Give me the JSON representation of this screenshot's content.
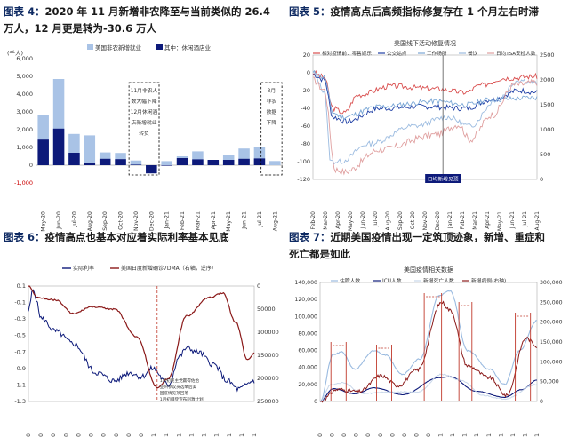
{
  "panels": [
    {
      "figure_label": "图表 4：",
      "title": "2020 年 11 月新增非农降至与当前类似的 26.4 万人，12 月更是转为-30.6 万人",
      "title_line1": "2020 年 11 月新增非农降至与当前类似的 26.4",
      "title_line2": "万人，12 月更是转为-30.6 万人"
    },
    {
      "figure_label": "图表 5：",
      "title_line1": "疫情高点后高频指标修复存在 1 个月左右时滞"
    },
    {
      "figure_label": "图表 6：",
      "title_line1": "疫情高点也基本对应着实际利率基本见底"
    },
    {
      "figure_label": "图表 7：",
      "title_line1": "近期美国疫情出现一定筑顶迹象，新增、重症和",
      "title_line2": "死亡都是如此"
    }
  ],
  "colors": {
    "light_blue": "#a9c3e6",
    "navy": "#0d1a7a",
    "dark_red": "#8b1a1a",
    "red": "#c0392b"
  },
  "chart_data": [
    {
      "type": "bar",
      "unit": "(千人)",
      "categories": [
        "May-20",
        "Jun-20",
        "Jul-20",
        "Aug-20",
        "Sep-20",
        "Oct-20",
        "Nov-20",
        "Dec-20",
        "Jan-21",
        "Feb-21",
        "Mar-21",
        "Apr-21",
        "May-21",
        "Jun-21",
        "Jul-21",
        "Aug-21"
      ],
      "series": [
        {
          "name": "美国非农新增就业",
          "values": [
            2830,
            4850,
            1760,
            1680,
            720,
            690,
            264,
            -306,
            230,
            500,
            780,
            270,
            580,
            940,
            1050,
            235
          ]
        },
        {
          "name": "其中：休闲酒店业",
          "values": [
            1440,
            2060,
            700,
            140,
            360,
            340,
            30,
            -460,
            -30,
            400,
            330,
            300,
            300,
            360,
            380,
            0
          ]
        }
      ],
      "ylim": [
        -1000,
        6000
      ],
      "yticks": [
        "-1,000",
        "0",
        "1,000",
        "2,000",
        "3,000",
        "4,000",
        "5,000",
        "6,000"
      ],
      "annotations": [
        {
          "text": "11月非农人数大幅下降 12月休闲酒店新增就业转负",
          "lines": [
            "11月非农人",
            "数大幅下降",
            "12月休闲酒",
            "店新增就业",
            "转负"
          ]
        },
        {
          "text": "8月非农数据下降",
          "lines": [
            "8月",
            "非农",
            "数据",
            "下降"
          ]
        }
      ]
    },
    {
      "type": "line",
      "title": "美国线下活动修复情况",
      "series": [
        {
          "name": "相对疫情前：零售娱乐",
          "axis": "left"
        },
        {
          "name": "公交站点",
          "axis": "left"
        },
        {
          "name": "工作场所",
          "axis": "left"
        },
        {
          "name": "餐饮",
          "axis": "left"
        },
        {
          "name": "日均TSA安检人数",
          "axis": "right"
        }
      ],
      "ylim_left": [
        -120,
        20
      ],
      "yticks_left": [
        "20",
        "0",
        "-20",
        "-40",
        "-60",
        "-80",
        "-100",
        "-120"
      ],
      "ylim_right": [
        0,
        2500
      ],
      "yticks_right": [
        "2500",
        "2000",
        "1500",
        "1000",
        "500",
        "0"
      ],
      "xticks": [
        "Feb-20",
        "Mar-20",
        "Apr-20",
        "May-20",
        "Jun-20",
        "Jul-20",
        "Aug-20",
        "Sep-20",
        "Oct-20",
        "Nov-20",
        "Dec-20",
        "Jan-21",
        "Feb-21",
        "Mar-21",
        "Apr-21",
        "May-21",
        "Jun-21",
        "Jul-21",
        "Aug-21"
      ],
      "annotations": [
        {
          "text": "日均新增见顶"
        }
      ]
    },
    {
      "type": "line",
      "series": [
        {
          "name": "实际利率",
          "axis": "left"
        },
        {
          "name": "美国日度新增确诊7DMA（右轴，逆序）",
          "axis": "right"
        }
      ],
      "ylim_left": [
        -1.3,
        0.1
      ],
      "yticks_left": [
        "0.1",
        "-0.1",
        "-0.3",
        "-0.5",
        "-0.7",
        "-0.9",
        "-1.1",
        "-1.3"
      ],
      "ylim_right": [
        250000,
        0
      ],
      "yticks_right": [
        "0",
        "50000",
        "100000",
        "150000",
        "200000",
        "250000"
      ],
      "xticks": [
        "Mar-20",
        "Apr-20",
        "May-20",
        "Jun-20",
        "Jul-20",
        "Aug-20",
        "Sep-20",
        "Oct-20",
        "Nov-20",
        "Dec-20",
        "Jan-21",
        "Feb-21",
        "Mar-21",
        "Apr-21",
        "May-21",
        "Jun-21",
        "Jul-21",
        "Aug-21",
        "Sep-21"
      ],
      "annotations": [
        {
          "lines": [
            "1月初民主党赢得佐治",
            "亚州参议员选举后美",
            "国疫情见顶回落",
            "1月初拜登宣布刺激计划"
          ]
        }
      ]
    },
    {
      "type": "line",
      "title": "美国疫情相关数据",
      "series": [
        {
          "name": "住院人数",
          "axis": "left"
        },
        {
          "name": "ICU人数",
          "axis": "left"
        },
        {
          "name": "新增死亡人数",
          "axis": "left"
        },
        {
          "name": "新增病例(右轴)",
          "axis": "right"
        }
      ],
      "ylim_left": [
        0,
        140000
      ],
      "yticks_left": [
        "140,000",
        "120,000",
        "100,000",
        "80,000",
        "60,000",
        "40,000",
        "20,000",
        "0"
      ],
      "ylim_right": [
        0,
        300000
      ],
      "yticks_right": [
        "300,000",
        "250,000",
        "200,000",
        "150,000",
        "100,000",
        "50,000",
        "0"
      ],
      "xticks": [
        "Mar-20",
        "Apr-20",
        "May-20",
        "Jun-20",
        "Jul-20",
        "Aug-20",
        "Sep-20",
        "Oct-20",
        "Nov-20",
        "Dec-20",
        "Jan-21",
        "Feb-21",
        "Mar-21",
        "Apr-21",
        "May-21",
        "Jun-21",
        "Jul-21",
        "Aug-21",
        "Sep-21"
      ]
    }
  ]
}
